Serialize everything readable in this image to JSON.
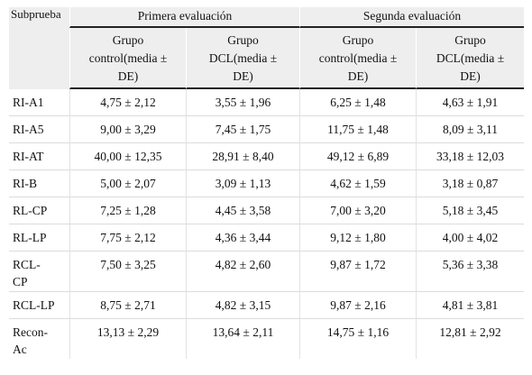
{
  "header": {
    "subtest": "Subprueba",
    "first_eval": "Primera evaluación",
    "second_eval": "Segunda evaluación",
    "col_control": [
      "Grupo",
      "control(media ±",
      "DE)"
    ],
    "col_dcl": [
      "Grupo",
      "DCL(media ±",
      "DE)"
    ]
  },
  "rows": [
    {
      "label": "RI-A1",
      "v": [
        "4,75 ± 2,12",
        "3,55 ± 1,96",
        "6,25 ± 1,48",
        "4,63 ± 1,91"
      ]
    },
    {
      "label": "RI-A5",
      "v": [
        "9,00 ± 3,29",
        "7,45 ± 1,75",
        "11,75 ± 1,48",
        "8,09 ± 3,11"
      ]
    },
    {
      "label": "RI-AT",
      "v": [
        "40,00 ± 12,35",
        "28,91 ± 8,40",
        "49,12 ± 6,89",
        "33,18 ± 12,03"
      ]
    },
    {
      "label": "RI-B",
      "v": [
        "5,00 ± 2,07",
        "3,09 ± 1,13",
        "4,62 ± 1,59",
        "3,18 ± 0,87"
      ]
    },
    {
      "label": "RL-CP",
      "v": [
        "7,25 ± 1,28",
        "4,45 ± 3,58",
        "7,00 ± 3,20",
        "5,18 ± 3,45"
      ]
    },
    {
      "label": "RL-LP",
      "v": [
        "7,75 ± 2,12",
        "4,36 ± 3,44",
        "9,12 ± 1,80",
        "4,00 ± 4,02"
      ]
    },
    {
      "label": [
        "RCL-",
        "CP"
      ],
      "v": [
        "7,50 ± 3,25",
        "4,82 ± 2,60",
        "9,87 ± 1,72",
        "5,36 ± 3,38"
      ]
    },
    {
      "label": "RCL-LP",
      "v": [
        "8,75 ± 2,71",
        "4,82 ± 3,15",
        "9,87 ± 2,16",
        "4,81 ± 3,81"
      ]
    },
    {
      "label": [
        "Recon-",
        "Ac"
      ],
      "v": [
        "13,13 ± 2,29",
        "13,64 ± 2,11",
        "14,75 ± 1,16",
        "12,81 ± 2,92"
      ]
    }
  ]
}
